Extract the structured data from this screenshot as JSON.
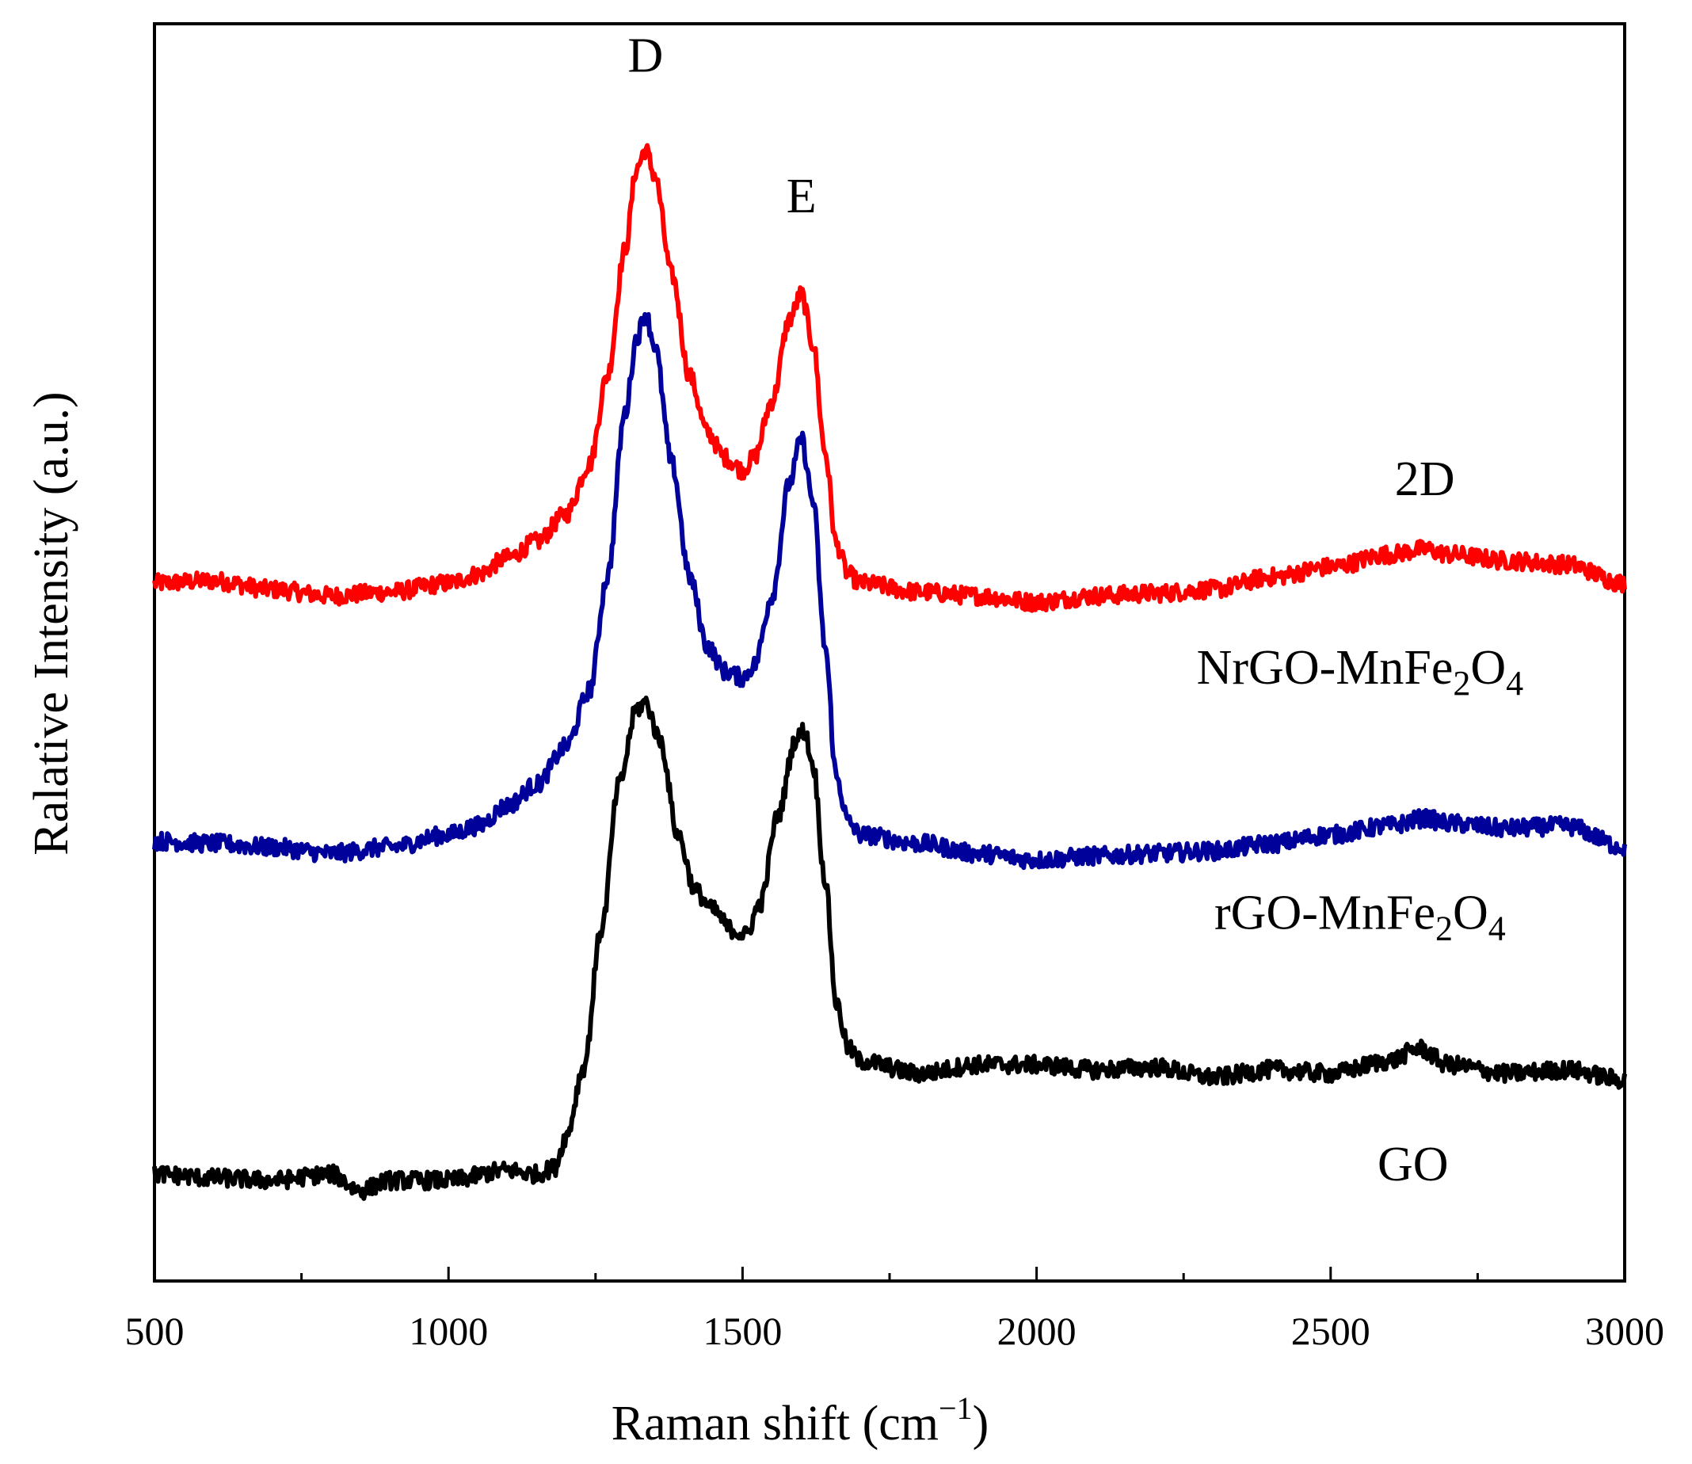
{
  "chart_data": {
    "type": "line",
    "title": "",
    "xlabel": "Raman shift (cm",
    "xlabel_sup": "−1",
    "xlabel_close": ")",
    "ylabel": "Ralative Intensity (a.u.)",
    "xlim": [
      500,
      3000
    ],
    "ylim": [
      0,
      10
    ],
    "xticks": [
      500,
      1000,
      1500,
      2000,
      2500,
      3000
    ],
    "xtick_labels": [
      "500",
      "1000",
      "1500",
      "2000",
      "2500",
      "3000"
    ],
    "grid": false,
    "peak_labels": [
      {
        "text": "D",
        "x": 1335,
        "y": 9.62
      },
      {
        "text": "E",
        "x": 1600,
        "y": 8.5
      },
      {
        "text": "2D",
        "x": 2660,
        "y": 6.25
      }
    ],
    "series": [
      {
        "name": "NrGO-MnFe2O4",
        "label_main": "NrGO-MnFe",
        "label_sub1": "2",
        "label_mid": "O",
        "label_sub2": "4",
        "label_x": 2550,
        "label_y": 4.75,
        "color": "#ff0000",
        "points": [
          [
            500,
            5.55
          ],
          [
            600,
            5.57
          ],
          [
            700,
            5.5
          ],
          [
            800,
            5.45
          ],
          [
            900,
            5.48
          ],
          [
            1000,
            5.55
          ],
          [
            1050,
            5.62
          ],
          [
            1100,
            5.75
          ],
          [
            1150,
            5.88
          ],
          [
            1200,
            6.1
          ],
          [
            1240,
            6.5
          ],
          [
            1270,
            7.2
          ],
          [
            1300,
            8.2
          ],
          [
            1320,
            8.85
          ],
          [
            1335,
            9.0
          ],
          [
            1350,
            8.8
          ],
          [
            1380,
            8.0
          ],
          [
            1410,
            7.2
          ],
          [
            1440,
            6.75
          ],
          [
            1470,
            6.55
          ],
          [
            1500,
            6.45
          ],
          [
            1520,
            6.55
          ],
          [
            1550,
            7.0
          ],
          [
            1580,
            7.65
          ],
          [
            1600,
            7.85
          ],
          [
            1620,
            7.45
          ],
          [
            1640,
            6.6
          ],
          [
            1660,
            5.85
          ],
          [
            1680,
            5.62
          ],
          [
            1700,
            5.55
          ],
          [
            1800,
            5.48
          ],
          [
            1900,
            5.45
          ],
          [
            2000,
            5.4
          ],
          [
            2100,
            5.45
          ],
          [
            2200,
            5.47
          ],
          [
            2300,
            5.5
          ],
          [
            2400,
            5.6
          ],
          [
            2500,
            5.68
          ],
          [
            2600,
            5.78
          ],
          [
            2660,
            5.82
          ],
          [
            2700,
            5.78
          ],
          [
            2800,
            5.73
          ],
          [
            2900,
            5.7
          ],
          [
            3000,
            5.55
          ]
        ]
      },
      {
        "name": "rGO-MnFe2O4",
        "label_main": "rGO-MnFe",
        "label_sub1": "2",
        "label_mid": "O",
        "label_sub2": "4",
        "label_x": 2550,
        "label_y": 2.8,
        "color": "#00009a",
        "points": [
          [
            500,
            3.5
          ],
          [
            600,
            3.48
          ],
          [
            700,
            3.45
          ],
          [
            800,
            3.4
          ],
          [
            900,
            3.45
          ],
          [
            1000,
            3.55
          ],
          [
            1050,
            3.62
          ],
          [
            1100,
            3.78
          ],
          [
            1150,
            3.95
          ],
          [
            1200,
            4.25
          ],
          [
            1240,
            4.7
          ],
          [
            1270,
            5.6
          ],
          [
            1300,
            6.9
          ],
          [
            1320,
            7.5
          ],
          [
            1335,
            7.7
          ],
          [
            1350,
            7.45
          ],
          [
            1380,
            6.5
          ],
          [
            1410,
            5.6
          ],
          [
            1440,
            5.05
          ],
          [
            1470,
            4.85
          ],
          [
            1500,
            4.8
          ],
          [
            1520,
            4.9
          ],
          [
            1550,
            5.45
          ],
          [
            1580,
            6.35
          ],
          [
            1600,
            6.7
          ],
          [
            1620,
            6.2
          ],
          [
            1640,
            5.05
          ],
          [
            1660,
            4.0
          ],
          [
            1680,
            3.65
          ],
          [
            1700,
            3.55
          ],
          [
            1800,
            3.48
          ],
          [
            1900,
            3.4
          ],
          [
            2000,
            3.35
          ],
          [
            2100,
            3.38
          ],
          [
            2200,
            3.4
          ],
          [
            2300,
            3.42
          ],
          [
            2400,
            3.48
          ],
          [
            2500,
            3.55
          ],
          [
            2600,
            3.62
          ],
          [
            2660,
            3.68
          ],
          [
            2700,
            3.64
          ],
          [
            2800,
            3.6
          ],
          [
            2900,
            3.62
          ],
          [
            3000,
            3.45
          ]
        ]
      },
      {
        "name": "GO",
        "label_main": "GO",
        "label_sub1": "",
        "label_mid": "",
        "label_sub2": "",
        "label_x": 2640,
        "label_y": 0.8,
        "color": "#000000",
        "points": [
          [
            500,
            0.85
          ],
          [
            600,
            0.82
          ],
          [
            700,
            0.8
          ],
          [
            800,
            0.85
          ],
          [
            850,
            0.72
          ],
          [
            900,
            0.8
          ],
          [
            1000,
            0.8
          ],
          [
            1100,
            0.88
          ],
          [
            1150,
            0.85
          ],
          [
            1180,
            0.9
          ],
          [
            1200,
            1.15
          ],
          [
            1230,
            1.7
          ],
          [
            1260,
            2.8
          ],
          [
            1290,
            3.95
          ],
          [
            1320,
            4.55
          ],
          [
            1335,
            4.6
          ],
          [
            1360,
            4.3
          ],
          [
            1390,
            3.55
          ],
          [
            1420,
            3.1
          ],
          [
            1450,
            2.95
          ],
          [
            1480,
            2.8
          ],
          [
            1505,
            2.75
          ],
          [
            1530,
            3.0
          ],
          [
            1560,
            3.7
          ],
          [
            1590,
            4.3
          ],
          [
            1605,
            4.38
          ],
          [
            1620,
            4.1
          ],
          [
            1640,
            3.2
          ],
          [
            1660,
            2.2
          ],
          [
            1680,
            1.85
          ],
          [
            1700,
            1.75
          ],
          [
            1800,
            1.65
          ],
          [
            1900,
            1.72
          ],
          [
            2000,
            1.72
          ],
          [
            2100,
            1.68
          ],
          [
            2200,
            1.7
          ],
          [
            2300,
            1.62
          ],
          [
            2400,
            1.68
          ],
          [
            2500,
            1.65
          ],
          [
            2600,
            1.75
          ],
          [
            2650,
            1.85
          ],
          [
            2700,
            1.72
          ],
          [
            2800,
            1.65
          ],
          [
            2900,
            1.68
          ],
          [
            3000,
            1.6
          ]
        ]
      }
    ]
  }
}
